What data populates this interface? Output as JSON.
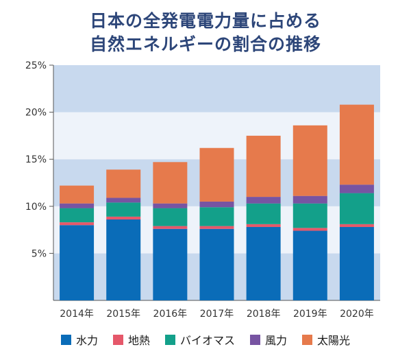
{
  "chart_data": {
    "type": "bar",
    "stacked": true,
    "title": [
      "日本の全発電電力量に占める",
      "自然エネルギーの割合の推移"
    ],
    "categories": [
      "2014年",
      "2015年",
      "2016年",
      "2017年",
      "2018年",
      "2019年",
      "2020年"
    ],
    "y_ticks": [
      "5%",
      "10%",
      "15%",
      "20%",
      "25%"
    ],
    "ylim": [
      0,
      25
    ],
    "series": [
      {
        "name": "水力",
        "color": "#0a6cb8",
        "values": [
          8.0,
          8.6,
          7.6,
          7.6,
          7.8,
          7.4,
          7.8
        ]
      },
      {
        "name": "地熱",
        "color": "#e5586a",
        "values": [
          0.3,
          0.3,
          0.3,
          0.3,
          0.3,
          0.3,
          0.3
        ]
      },
      {
        "name": "バイオマス",
        "color": "#13a08a",
        "values": [
          1.5,
          1.5,
          1.9,
          2.0,
          2.2,
          2.6,
          3.3
        ]
      },
      {
        "name": "風力",
        "color": "#7754a2",
        "values": [
          0.5,
          0.5,
          0.5,
          0.6,
          0.7,
          0.8,
          0.9
        ]
      },
      {
        "name": "太陽光",
        "color": "#e67a4c",
        "values": [
          1.9,
          3.0,
          4.4,
          5.7,
          6.5,
          7.5,
          8.5
        ]
      }
    ],
    "grid": "alternating bands",
    "legend_position": "bottom"
  }
}
